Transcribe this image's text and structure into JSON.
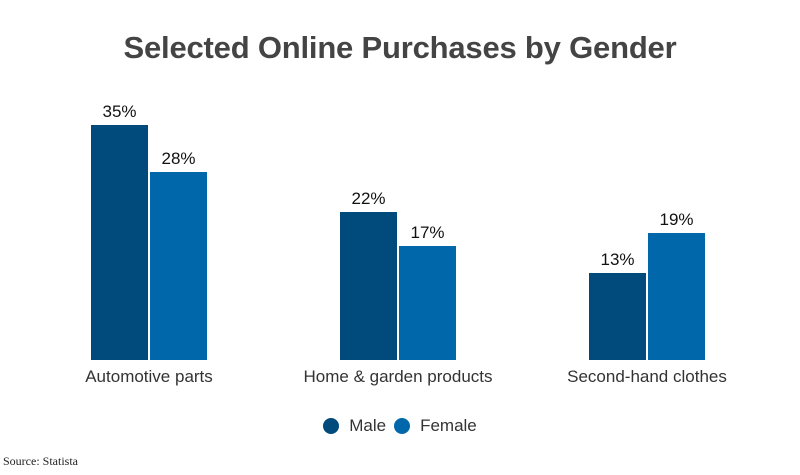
{
  "chart_data": {
    "type": "bar",
    "title": "Selected Online Purchases by Gender",
    "categories": [
      "Automotive parts",
      "Home & garden products",
      "Second-hand clothes"
    ],
    "series": [
      {
        "name": "Male",
        "color": "#004a7c",
        "values": [
          35,
          22,
          13
        ],
        "labels": [
          "35%",
          "22%",
          "13%"
        ]
      },
      {
        "name": "Female",
        "color": "#0068aa",
        "values": [
          28,
          17,
          19
        ],
        "labels": [
          "28%",
          "17%",
          "19%"
        ]
      }
    ],
    "xlabel": "",
    "ylabel": "",
    "ylim": [
      0,
      35
    ],
    "grid": false,
    "legend_position": "bottom",
    "source": "Source: Statista"
  }
}
